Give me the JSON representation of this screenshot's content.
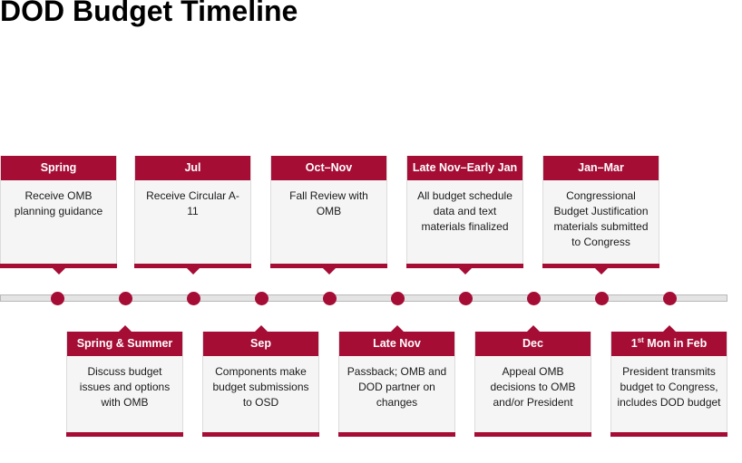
{
  "title": "DOD Budget Timeline",
  "top_cards": [
    {
      "head": "Spring",
      "body": "Receive OMB planning guidance"
    },
    {
      "head": "Jul",
      "body": "Receive Circular A-11"
    },
    {
      "head": "Oct–Nov",
      "body": "Fall Review with OMB"
    },
    {
      "head": "Late Nov–Early Jan",
      "body": "All budget schedule data and text materials finalized"
    },
    {
      "head": "Jan–Mar",
      "body": "Congressional Budget Justification materials submitted to Congress"
    }
  ],
  "bottom_cards": [
    {
      "head": "Spring & Summer",
      "body": "Discuss budget issues and options with OMB"
    },
    {
      "head": "Sep",
      "body": "Components make budget submissions to OSD"
    },
    {
      "head": "Late Nov",
      "body": "Passback; OMB and DOD partner on changes"
    },
    {
      "head": "Dec",
      "body": "Appeal OMB decisions to OMB and/or President"
    },
    {
      "head_pre": "1",
      "head_sup": "st",
      "head_post": " Mon in Feb",
      "body": "President transmits budget to Congress, includes DOD budget"
    }
  ],
  "colors": {
    "accent": "#a50d35",
    "card_bg": "#f5f5f5",
    "line": "#e4e4e4"
  }
}
